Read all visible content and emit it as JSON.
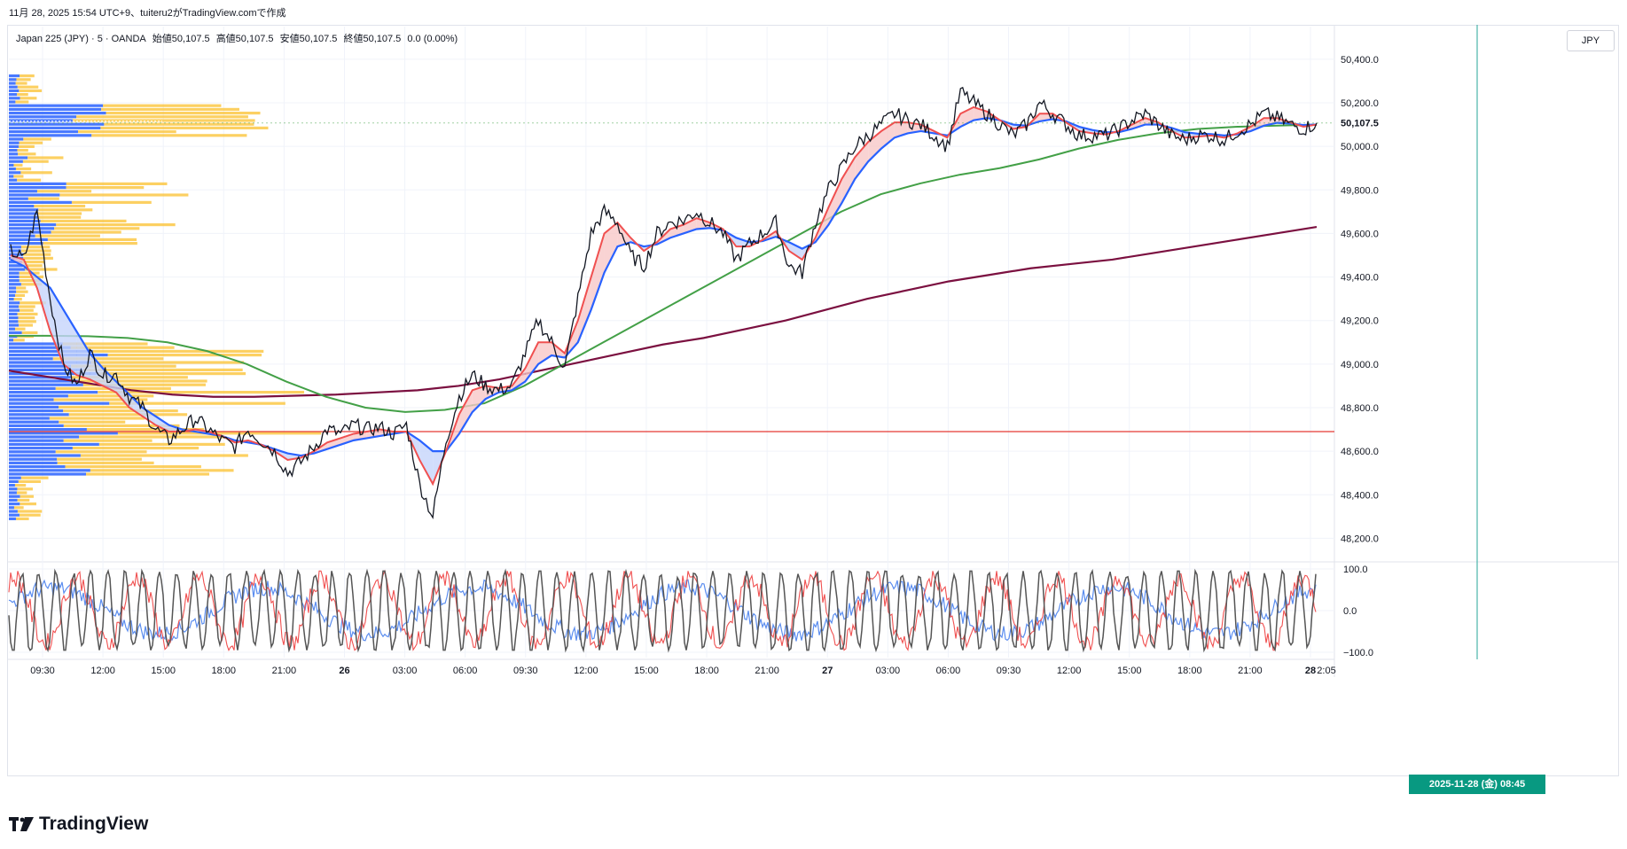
{
  "caption": "11月 28, 2025 15:54 UTC+9、tuiteru2がTradingView.comで作成",
  "legend": {
    "symbol": "Japan 225 (JPY) · 5 · OANDA",
    "open": "始値50,107.5",
    "high": "高値50,107.5",
    "low": "安値50,107.5",
    "close": "終値50,107.5",
    "change": "0.0 (0.00%)"
  },
  "unit_label": "JPY",
  "brand": "TradingView",
  "crosshair_label": "2025-11-28 (金)   08:45",
  "colors": {
    "price": "#131722",
    "ema_fast": "#f05050",
    "ema_slow": "#2962ff",
    "ma_green": "#43a047",
    "ma_maroon": "#7b1040",
    "support": "#e53935",
    "vp_buy": "#2962ff",
    "vp_sell": "#fbc02d",
    "crosshair": "#26a69a",
    "stoch_k": "#555555",
    "stoch_d": "#f05050",
    "stoch_slow": "#5b8def"
  },
  "chart_data": {
    "type": "line",
    "symbol": "Japan 225 (JPY)",
    "interval": "5",
    "ylim": [
      48100,
      50550
    ],
    "yticks": [
      48200,
      48400,
      48600,
      48800,
      49000,
      49200,
      49400,
      49600,
      49800,
      50000,
      50200,
      50400
    ],
    "ytick_labels": [
      "48,200.0",
      "48,400.0",
      "48,600.0",
      "48,800.0",
      "49,000.0",
      "49,200.0",
      "49,400.0",
      "49,600.0",
      "49,800.0",
      "50,000.0",
      "50,200.0",
      "50,400.0"
    ],
    "last_price": 50107.5,
    "last_price_label": "50,107.5",
    "support_level": 48690,
    "x_labels": [
      "09:30",
      "12:00",
      "15:00",
      "18:00",
      "21:00",
      "26",
      "03:00",
      "06:00",
      "09:30",
      "12:00",
      "15:00",
      "18:00",
      "21:00",
      "27",
      "03:00",
      "06:00",
      "09:30",
      "12:00",
      "15:00",
      "18:00",
      "21:00",
      "28"
    ],
    "x_labels_bold": [
      "26",
      "27",
      "28"
    ],
    "x_label_clipped": "2:05",
    "close_path": [
      49520,
      49480,
      49700,
      49300,
      49000,
      48900,
      49050,
      48950,
      48950,
      48850,
      48800,
      48700,
      48650,
      48700,
      48750,
      48700,
      48650,
      48620,
      48700,
      48650,
      48600,
      48500,
      48550,
      48620,
      48700,
      48680,
      48720,
      48700,
      48710,
      48680,
      48720,
      48450,
      48300,
      48650,
      48850,
      48950,
      48900,
      48880,
      48900,
      49050,
      49200,
      49100,
      48980,
      49300,
      49600,
      49700,
      49650,
      49500,
      49450,
      49600,
      49650,
      49660,
      49700,
      49650,
      49600,
      49480,
      49550,
      49600,
      49650,
      49450,
      49420,
      49650,
      49800,
      49900,
      50000,
      50050,
      50100,
      50150,
      50120,
      50100,
      50050,
      50000,
      50250,
      50200,
      50150,
      50100,
      50050,
      50100,
      50200,
      50150,
      50100,
      50050,
      50050,
      50050,
      50080,
      50120,
      50150,
      50100,
      50050,
      50030,
      50050,
      50050,
      50030,
      50070,
      50100,
      50150,
      50130,
      50100,
      50080,
      50107.5
    ],
    "ema_fast_path": [
      49500,
      49480,
      49350,
      49150,
      49000,
      48950,
      48930,
      48900,
      48870,
      48800,
      48760,
      48720,
      48690,
      48690,
      48700,
      48690,
      48670,
      48640,
      48650,
      48630,
      48600,
      48560,
      48570,
      48600,
      48640,
      48660,
      48680,
      48690,
      48700,
      48690,
      48690,
      48560,
      48450,
      48600,
      48770,
      48880,
      48900,
      48890,
      48900,
      48980,
      49100,
      49100,
      49050,
      49200,
      49400,
      49600,
      49650,
      49580,
      49520,
      49560,
      49620,
      49640,
      49670,
      49650,
      49620,
      49540,
      49540,
      49570,
      49610,
      49520,
      49480,
      49580,
      49720,
      49850,
      49950,
      50020,
      50070,
      50110,
      50110,
      50100,
      50070,
      50040,
      50150,
      50180,
      50160,
      50120,
      50080,
      50090,
      50150,
      50150,
      50110,
      50070,
      50060,
      50055,
      50070,
      50100,
      50130,
      50110,
      50070,
      50040,
      50045,
      50050,
      50040,
      50060,
      50090,
      50130,
      50130,
      50110,
      50090,
      50100
    ],
    "ema_slow_path": [
      49480,
      49450,
      49400,
      49350,
      49250,
      49150,
      49050,
      48980,
      48920,
      48860,
      48800,
      48760,
      48720,
      48700,
      48690,
      48680,
      48670,
      48650,
      48640,
      48630,
      48610,
      48590,
      48580,
      48590,
      48610,
      48630,
      48650,
      48660,
      48670,
      48680,
      48690,
      48650,
      48600,
      48600,
      48680,
      48780,
      48840,
      48870,
      48880,
      48920,
      49000,
      49040,
      49030,
      49100,
      49250,
      49420,
      49540,
      49560,
      49540,
      49550,
      49580,
      49600,
      49620,
      49625,
      49615,
      49580,
      49560,
      49565,
      49585,
      49560,
      49530,
      49560,
      49640,
      49740,
      49850,
      49930,
      49990,
      50040,
      50060,
      50070,
      50060,
      50050,
      50090,
      50120,
      50130,
      50120,
      50100,
      50095,
      50115,
      50125,
      50115,
      50090,
      50075,
      50065,
      50065,
      50080,
      50100,
      50100,
      50085,
      50065,
      50058,
      50056,
      50050,
      50055,
      50070,
      50095,
      50108,
      50105,
      50098,
      50100
    ],
    "ma_green_path": [
      49130,
      49130,
      49128,
      49120,
      49100,
      49060,
      49000,
      48920,
      48850,
      48800,
      48780,
      48790,
      48820,
      48900,
      49000,
      49100,
      49200,
      49300,
      49400,
      49500,
      49600,
      49700,
      49780,
      49830,
      49870,
      49900,
      49940,
      49990,
      50030,
      50060,
      50080,
      50090,
      50095,
      50100
    ],
    "ma_maroon_path": [
      48970,
      48940,
      48910,
      48880,
      48860,
      48850,
      48850,
      48855,
      48860,
      48870,
      48880,
      48900,
      48930,
      48970,
      49010,
      49050,
      49090,
      49120,
      49160,
      49200,
      49250,
      49300,
      49340,
      49380,
      49410,
      49440,
      49460,
      49480,
      49510,
      49540,
      49570,
      49600,
      49630
    ],
    "volume_profile_note": "horizontal volume-by-price histogram on left, buy (blue) / sell (yellow)",
    "oscillator": {
      "ylim": [
        -100,
        100
      ],
      "ytick_labels": [
        "100.0",
        "0.0",
        "−100.0"
      ],
      "levels": [
        100,
        0,
        -100
      ]
    }
  }
}
